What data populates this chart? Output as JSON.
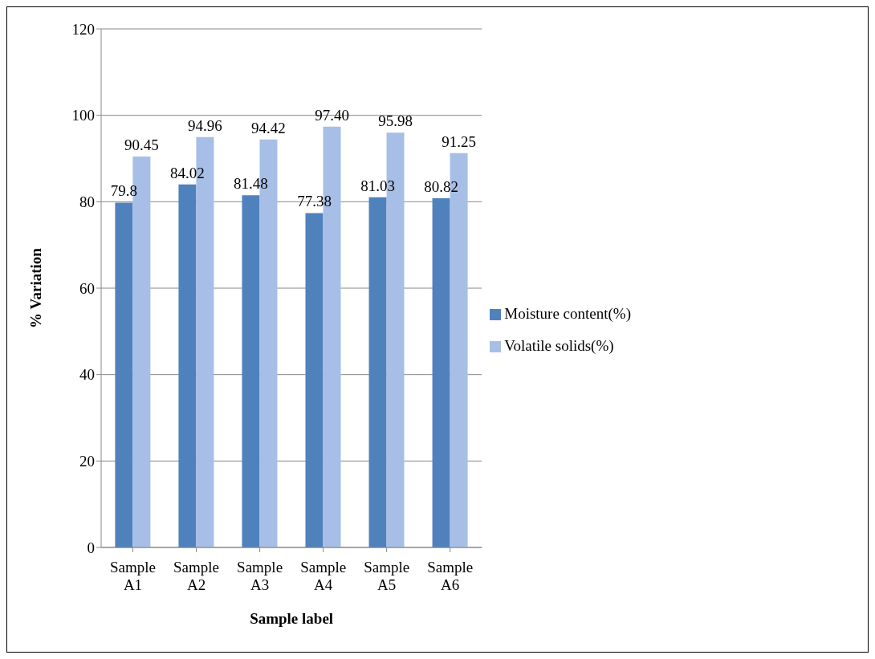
{
  "chart_data": {
    "type": "bar",
    "xlabel": "Sample label",
    "ylabel": "% Variation",
    "categories": [
      "Sample A1",
      "Sample A2",
      "Sample A3",
      "Sample A4",
      "Sample A5",
      "Sample A6"
    ],
    "series": [
      {
        "name": "Moisture content(%)",
        "color": "#4f81bd",
        "values": [
          79.8,
          84.02,
          81.48,
          77.38,
          81.03,
          80.82
        ],
        "value_labels": [
          "79.8",
          "84.02",
          "81.48",
          "77.38",
          "81.03",
          "80.82"
        ]
      },
      {
        "name": "Volatile solids(%)",
        "color": "#a7bfe6",
        "values": [
          90.45,
          94.96,
          94.42,
          97.4,
          95.98,
          91.25
        ],
        "value_labels": [
          "90.45",
          "94.96",
          "94.42",
          "97.40",
          "95.98",
          "91.25"
        ]
      }
    ],
    "ylim": [
      0,
      120
    ],
    "yticks": [
      0,
      20,
      40,
      60,
      80,
      100,
      120
    ],
    "grid": "y",
    "legend": "right"
  }
}
